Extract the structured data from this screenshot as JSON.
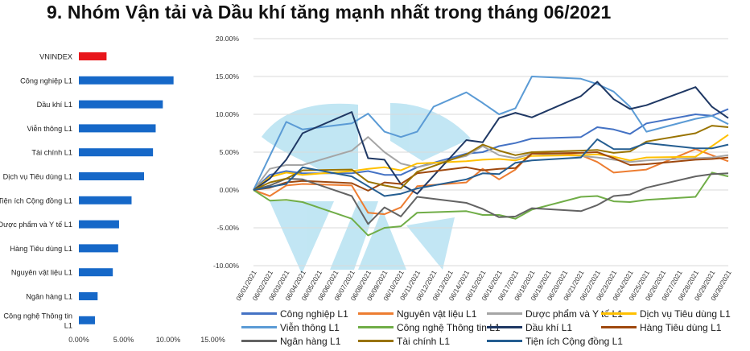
{
  "title": "9. Nhóm Vận tải và Dầu khí tăng mạnh nhất trong tháng 06/2021",
  "colors": {
    "bar": "#1668c8",
    "bar_highlight": "#e8161b",
    "grid": "#d9d9d9",
    "watermark": "#a8dcef"
  },
  "chart_data": [
    {
      "type": "bar",
      "orientation": "horizontal",
      "categories": [
        "VNINDEX",
        "Công nghiệp L1",
        "Dầu khí  L1",
        "Viễn thông L1",
        "Tài chính L1",
        "Dịch vụ Tiêu dùng L1",
        "Tiện ích Cộng đồng L1",
        "Dược phẩm và Y tế L1",
        "Hàng Tiêu dùng L1",
        "Nguyên vật liệu L1",
        "Ngân hàng L1",
        "Công nghệ Thông tin L1"
      ],
      "category_lines": [
        [
          "VNINDEX"
        ],
        [
          "Công nghiệp L1"
        ],
        [
          "Dầu khí  L1"
        ],
        [
          "Viễn thông L1"
        ],
        [
          "Tài chính L1"
        ],
        [
          "Dịch vụ Tiêu dùng L1"
        ],
        [
          "Tiện ích Cộng đồng L1"
        ],
        [
          "Dược phẩm và Y tế L1"
        ],
        [
          "Hàng Tiêu dùng L1"
        ],
        [
          "Nguyên vật liệu L1"
        ],
        [
          "Ngân hàng L1"
        ],
        [
          "Công nghệ Thông tin",
          "L1"
        ]
      ],
      "values": [
        3.1,
        10.6,
        9.4,
        8.6,
        8.3,
        7.3,
        5.9,
        4.5,
        4.4,
        3.8,
        2.1,
        1.8
      ],
      "highlight": "VNINDEX",
      "xlim": [
        0,
        15
      ],
      "xticks": [
        0,
        5,
        10,
        15
      ],
      "xtick_labels": [
        "0.00%",
        "5.00%",
        "10.00%",
        "15.00%"
      ]
    },
    {
      "type": "line",
      "x": [
        "06/01/2021",
        "06/02/2021",
        "06/03/2021",
        "06/04/2021",
        "06/05/2021",
        "06/06/2021",
        "06/07/2021",
        "06/08/2021",
        "06/09/2021",
        "06/10/2021",
        "06/11/2021",
        "06/12/2021",
        "06/13/2021",
        "06/14/2021",
        "06/15/2021",
        "06/16/2021",
        "06/17/2021",
        "06/18/2021",
        "06/19/2021",
        "06/20/2021",
        "06/21/2021",
        "06/22/2021",
        "06/23/2021",
        "06/24/2021",
        "06/25/2021",
        "06/26/2021",
        "06/27/2021",
        "06/28/2021",
        "06/29/2021",
        "06/30/2021"
      ],
      "ylim": [
        -10,
        20
      ],
      "yticks": [
        -10,
        -5,
        0,
        5,
        10,
        15,
        20
      ],
      "ytick_labels": [
        "-10.00%",
        "-5.00%",
        "0.00%",
        "5.00%",
        "10.00%",
        "15.00%",
        "20.00%"
      ],
      "series": [
        {
          "name": "Công nghiệp L1",
          "color": "#4472c4",
          "points": [
            [
              1,
              0
            ],
            [
              2,
              2.0
            ],
            [
              3,
              2.5
            ],
            [
              4,
              2.2
            ],
            [
              7,
              2.2
            ],
            [
              8,
              2.5
            ],
            [
              9,
              2.0
            ],
            [
              10,
              2.0
            ],
            [
              11,
              3.0
            ],
            [
              14,
              4.8
            ],
            [
              15,
              5.0
            ],
            [
              16,
              5.8
            ],
            [
              17,
              6.2
            ],
            [
              18,
              6.8
            ],
            [
              21,
              7.0
            ],
            [
              22,
              8.3
            ],
            [
              23,
              8.0
            ],
            [
              24,
              7.4
            ],
            [
              25,
              8.8
            ],
            [
              28,
              10.0
            ],
            [
              29,
              9.8
            ],
            [
              30,
              10.7
            ]
          ]
        },
        {
          "name": "Nguyên vật liệu L1",
          "color": "#ed7d31",
          "points": [
            [
              1,
              0
            ],
            [
              2,
              -0.8
            ],
            [
              3,
              0.6
            ],
            [
              4,
              0.8
            ],
            [
              7,
              0.6
            ],
            [
              8,
              -3.0
            ],
            [
              9,
              -3.2
            ],
            [
              10,
              -2.3
            ],
            [
              11,
              0.5
            ],
            [
              14,
              1.0
            ],
            [
              15,
              2.8
            ],
            [
              16,
              1.4
            ],
            [
              17,
              2.7
            ],
            [
              18,
              5.0
            ],
            [
              21,
              4.6
            ],
            [
              22,
              3.7
            ],
            [
              23,
              2.3
            ],
            [
              24,
              2.5
            ],
            [
              25,
              2.7
            ],
            [
              28,
              5.4
            ],
            [
              29,
              4.6
            ],
            [
              30,
              3.8
            ]
          ]
        },
        {
          "name": "Dược phẩm và Y tế L1",
          "color": "#a5a5a5",
          "points": [
            [
              1,
              0
            ],
            [
              2,
              2.8
            ],
            [
              3,
              3.3
            ],
            [
              4,
              3.3
            ],
            [
              7,
              5.2
            ],
            [
              8,
              7.0
            ],
            [
              9,
              5.0
            ],
            [
              10,
              3.5
            ],
            [
              11,
              3.0
            ],
            [
              14,
              4.5
            ],
            [
              15,
              5.8
            ],
            [
              16,
              4.6
            ],
            [
              17,
              4.2
            ],
            [
              18,
              4.8
            ],
            [
              21,
              4.5
            ],
            [
              22,
              4.3
            ],
            [
              23,
              4.0
            ],
            [
              24,
              3.7
            ],
            [
              25,
              3.9
            ],
            [
              28,
              4.2
            ],
            [
              29,
              4.3
            ],
            [
              30,
              4.6
            ]
          ]
        },
        {
          "name": "Dịch vụ Tiêu dùng L1",
          "color": "#ffc000",
          "points": [
            [
              1,
              0
            ],
            [
              2,
              1.7
            ],
            [
              3,
              2.3
            ],
            [
              4,
              2.0
            ],
            [
              7,
              2.5
            ],
            [
              8,
              2.8
            ],
            [
              9,
              3.0
            ],
            [
              10,
              2.6
            ],
            [
              11,
              3.5
            ],
            [
              14,
              3.8
            ],
            [
              15,
              4.0
            ],
            [
              16,
              4.1
            ],
            [
              17,
              3.9
            ],
            [
              18,
              4.5
            ],
            [
              21,
              4.6
            ],
            [
              22,
              4.7
            ],
            [
              23,
              4.4
            ],
            [
              24,
              3.9
            ],
            [
              25,
              4.3
            ],
            [
              28,
              4.4
            ],
            [
              29,
              5.8
            ],
            [
              30,
              7.3
            ]
          ]
        },
        {
          "name": "Viễn thông L1",
          "color": "#5b9bd5",
          "points": [
            [
              1,
              0
            ],
            [
              2,
              4.5
            ],
            [
              3,
              9.0
            ],
            [
              4,
              8.0
            ],
            [
              7,
              8.8
            ],
            [
              8,
              10.1
            ],
            [
              9,
              7.7
            ],
            [
              10,
              7.0
            ],
            [
              11,
              7.7
            ],
            [
              12,
              11.0
            ],
            [
              14,
              12.9
            ],
            [
              15,
              11.5
            ],
            [
              16,
              10.0
            ],
            [
              17,
              10.8
            ],
            [
              18,
              15.0
            ],
            [
              21,
              14.7
            ],
            [
              22,
              14.0
            ],
            [
              23,
              13.0
            ],
            [
              24,
              11.0
            ],
            [
              25,
              7.7
            ],
            [
              28,
              9.4
            ],
            [
              29,
              9.8
            ],
            [
              30,
              8.7
            ]
          ]
        },
        {
          "name": "Công nghệ Thông tin L1",
          "color": "#70ad47",
          "points": [
            [
              1,
              0
            ],
            [
              2,
              -1.4
            ],
            [
              3,
              -1.3
            ],
            [
              4,
              -1.6
            ],
            [
              7,
              -3.8
            ],
            [
              8,
              -6.0
            ],
            [
              9,
              -5.0
            ],
            [
              10,
              -4.8
            ],
            [
              11,
              -3.0
            ],
            [
              14,
              -2.8
            ],
            [
              15,
              -3.3
            ],
            [
              16,
              -3.3
            ],
            [
              17,
              -3.8
            ],
            [
              18,
              -2.6
            ],
            [
              21,
              -0.9
            ],
            [
              22,
              -0.8
            ],
            [
              23,
              -1.5
            ],
            [
              24,
              -1.6
            ],
            [
              25,
              -1.3
            ],
            [
              28,
              -0.9
            ],
            [
              29,
              2.3
            ],
            [
              30,
              1.8
            ]
          ]
        },
        {
          "name": "Dầu khí  L1",
          "color": "#1f3864",
          "points": [
            [
              1,
              0
            ],
            [
              2,
              1.5
            ],
            [
              3,
              4.0
            ],
            [
              4,
              7.5
            ],
            [
              7,
              10.3
            ],
            [
              8,
              4.2
            ],
            [
              9,
              4.0
            ],
            [
              10,
              0.8
            ],
            [
              11,
              -0.5
            ],
            [
              14,
              6.6
            ],
            [
              15,
              6.3
            ],
            [
              16,
              9.5
            ],
            [
              17,
              10.2
            ],
            [
              18,
              9.6
            ],
            [
              21,
              12.4
            ],
            [
              22,
              14.3
            ],
            [
              23,
              12.0
            ],
            [
              24,
              10.7
            ],
            [
              25,
              11.2
            ],
            [
              28,
              13.6
            ],
            [
              29,
              11.0
            ],
            [
              30,
              9.5
            ]
          ]
        },
        {
          "name": "Hàng Tiêu dùng L1",
          "color": "#9e480e",
          "points": [
            [
              1,
              0
            ],
            [
              2,
              0.3
            ],
            [
              3,
              1.0
            ],
            [
              4,
              1.2
            ],
            [
              7,
              0.9
            ],
            [
              8,
              -0.1
            ],
            [
              9,
              1.0
            ],
            [
              10,
              0.8
            ],
            [
              11,
              2.2
            ],
            [
              14,
              3.0
            ],
            [
              15,
              2.6
            ],
            [
              16,
              2.8
            ],
            [
              17,
              2.9
            ],
            [
              18,
              4.8
            ],
            [
              21,
              4.9
            ],
            [
              22,
              5.0
            ],
            [
              23,
              4.2
            ],
            [
              24,
              3.3
            ],
            [
              25,
              3.4
            ],
            [
              28,
              4.0
            ],
            [
              29,
              4.1
            ],
            [
              30,
              4.3
            ]
          ]
        },
        {
          "name": "Ngân hàng L1",
          "color": "#636363",
          "points": [
            [
              1,
              0
            ],
            [
              2,
              0.6
            ],
            [
              3,
              1.5
            ],
            [
              4,
              1.4
            ],
            [
              7,
              -0.8
            ],
            [
              8,
              -4.5
            ],
            [
              9,
              -2.3
            ],
            [
              10,
              -3.5
            ],
            [
              11,
              -0.9
            ],
            [
              14,
              -1.7
            ],
            [
              15,
              -2.5
            ],
            [
              16,
              -3.6
            ],
            [
              17,
              -3.5
            ],
            [
              18,
              -2.4
            ],
            [
              21,
              -2.8
            ],
            [
              22,
              -2.0
            ],
            [
              23,
              -0.8
            ],
            [
              24,
              -0.6
            ],
            [
              25,
              0.3
            ],
            [
              28,
              1.8
            ],
            [
              29,
              2.1
            ],
            [
              30,
              2.2
            ]
          ]
        },
        {
          "name": "Tài chính L1",
          "color": "#997300",
          "points": [
            [
              1,
              0
            ],
            [
              2,
              1.0
            ],
            [
              3,
              1.5
            ],
            [
              4,
              2.6
            ],
            [
              7,
              2.7
            ],
            [
              8,
              1.1
            ],
            [
              9,
              0.6
            ],
            [
              10,
              0.2
            ],
            [
              11,
              2.4
            ],
            [
              14,
              4.7
            ],
            [
              15,
              6.0
            ],
            [
              16,
              5.2
            ],
            [
              17,
              4.6
            ],
            [
              18,
              5.0
            ],
            [
              21,
              5.2
            ],
            [
              22,
              5.3
            ],
            [
              23,
              4.9
            ],
            [
              24,
              5.1
            ],
            [
              25,
              6.4
            ],
            [
              28,
              7.5
            ],
            [
              29,
              8.5
            ],
            [
              30,
              8.3
            ]
          ]
        },
        {
          "name": "Tiện ích Cộng đồng L1",
          "color": "#255e91",
          "points": [
            [
              1,
              0
            ],
            [
              2,
              0.4
            ],
            [
              3,
              0.8
            ],
            [
              4,
              3.0
            ],
            [
              7,
              1.8
            ],
            [
              8,
              0.5
            ],
            [
              9,
              -0.8
            ],
            [
              10,
              -0.5
            ],
            [
              11,
              0.2
            ],
            [
              14,
              1.4
            ],
            [
              15,
              2.2
            ],
            [
              16,
              2.1
            ],
            [
              17,
              3.6
            ],
            [
              18,
              3.9
            ],
            [
              21,
              4.3
            ],
            [
              22,
              6.7
            ],
            [
              23,
              5.4
            ],
            [
              24,
              5.4
            ],
            [
              25,
              6.2
            ],
            [
              28,
              5.5
            ],
            [
              29,
              5.5
            ],
            [
              30,
              6.0
            ]
          ]
        }
      ]
    }
  ]
}
